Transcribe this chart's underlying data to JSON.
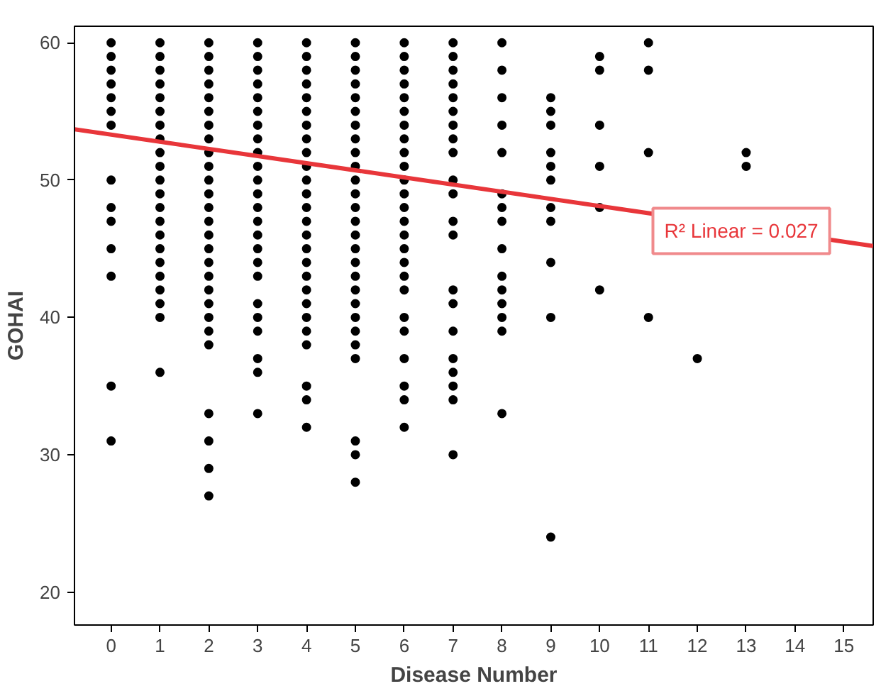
{
  "chart_data": {
    "type": "scatter",
    "xlabel": "Disease Number",
    "ylabel": "GOHAI",
    "xlim": [
      -0.75,
      15.6
    ],
    "ylim": [
      17.6,
      61.2
    ],
    "xticks": [
      0,
      1,
      2,
      3,
      4,
      5,
      6,
      7,
      8,
      9,
      10,
      11,
      12,
      13,
      14,
      15
    ],
    "yticks": [
      20,
      30,
      40,
      50,
      60
    ],
    "grid": false,
    "annotations": [
      {
        "text": "R² Linear = 0.027",
        "x": 12.9,
        "y": 46.3
      }
    ],
    "series": [
      {
        "color": "#000000",
        "marker": "circle",
        "x": [
          0,
          0,
          0,
          0,
          0,
          0,
          0,
          0,
          0,
          0,
          0,
          0,
          0,
          0,
          1,
          1,
          1,
          1,
          1,
          1,
          1,
          1,
          1,
          1,
          1,
          1,
          1,
          1,
          1,
          1,
          1,
          1,
          1,
          1,
          1,
          1,
          2,
          2,
          2,
          2,
          2,
          2,
          2,
          2,
          2,
          2,
          2,
          2,
          2,
          2,
          2,
          2,
          2,
          2,
          2,
          2,
          2,
          2,
          2,
          2,
          2,
          2,
          2,
          3,
          3,
          3,
          3,
          3,
          3,
          3,
          3,
          3,
          3,
          3,
          3,
          3,
          3,
          3,
          3,
          3,
          3,
          3,
          3,
          3,
          3,
          3,
          3,
          4,
          4,
          4,
          4,
          4,
          4,
          4,
          4,
          4,
          4,
          4,
          4,
          4,
          4,
          4,
          4,
          4,
          4,
          4,
          4,
          4,
          4,
          4,
          4,
          4,
          4,
          5,
          5,
          5,
          5,
          5,
          5,
          5,
          5,
          5,
          5,
          5,
          5,
          5,
          5,
          5,
          5,
          5,
          5,
          5,
          5,
          5,
          5,
          5,
          5,
          5,
          5,
          5,
          6,
          6,
          6,
          6,
          6,
          6,
          6,
          6,
          6,
          6,
          6,
          6,
          6,
          6,
          6,
          6,
          6,
          6,
          6,
          6,
          6,
          6,
          6,
          6,
          6,
          7,
          7,
          7,
          7,
          7,
          7,
          7,
          7,
          7,
          7,
          7,
          7,
          7,
          7,
          7,
          7,
          7,
          7,
          7,
          7,
          7,
          8,
          8,
          8,
          8,
          8,
          8,
          8,
          8,
          8,
          8,
          8,
          8,
          8,
          8,
          8,
          9,
          9,
          9,
          9,
          9,
          9,
          9,
          9,
          9,
          9,
          9,
          10,
          10,
          10,
          10,
          10,
          10,
          11,
          11,
          11,
          11,
          12,
          13,
          13
        ],
        "values": [
          60,
          59,
          58,
          57,
          56,
          55,
          54,
          50,
          48,
          47,
          45,
          43,
          35,
          31,
          60,
          59,
          58,
          57,
          56,
          55,
          54,
          53,
          52,
          51,
          50,
          49,
          48,
          47,
          46,
          45,
          44,
          43,
          42,
          41,
          40,
          36,
          60,
          59,
          58,
          57,
          56,
          55,
          54,
          53,
          52,
          51,
          50,
          49,
          48,
          47,
          46,
          45,
          44,
          43,
          42,
          41,
          40,
          39,
          38,
          33,
          31,
          29,
          27,
          60,
          59,
          58,
          57,
          56,
          55,
          54,
          53,
          52,
          51,
          50,
          49,
          48,
          47,
          46,
          45,
          44,
          43,
          41,
          40,
          39,
          37,
          36,
          33,
          60,
          59,
          58,
          57,
          56,
          55,
          54,
          53,
          52,
          51,
          50,
          49,
          48,
          47,
          46,
          45,
          44,
          43,
          42,
          41,
          40,
          39,
          38,
          35,
          34,
          32,
          60,
          59,
          58,
          57,
          56,
          55,
          54,
          53,
          52,
          51,
          50,
          49,
          48,
          47,
          46,
          45,
          44,
          43,
          42,
          41,
          40,
          39,
          38,
          37,
          31,
          30,
          28,
          60,
          59,
          58,
          57,
          56,
          55,
          54,
          53,
          52,
          51,
          50,
          49,
          48,
          47,
          46,
          45,
          44,
          43,
          42,
          40,
          39,
          37,
          35,
          34,
          32,
          60,
          59,
          58,
          57,
          56,
          55,
          54,
          53,
          52,
          50,
          49,
          47,
          46,
          42,
          41,
          39,
          37,
          36,
          35,
          34,
          30,
          60,
          58,
          56,
          54,
          52,
          49,
          48,
          47,
          45,
          43,
          42,
          41,
          40,
          39,
          33,
          56,
          55,
          54,
          52,
          51,
          50,
          48,
          47,
          44,
          40,
          24,
          59,
          58,
          54,
          51,
          48,
          42,
          60,
          58,
          52,
          40,
          37,
          52,
          51
        ]
      },
      {
        "type": "line",
        "color": "#e8363a",
        "line_style": "solid",
        "x": [
          -0.75,
          15.6
        ],
        "values": [
          53.7,
          45.2
        ]
      }
    ]
  }
}
